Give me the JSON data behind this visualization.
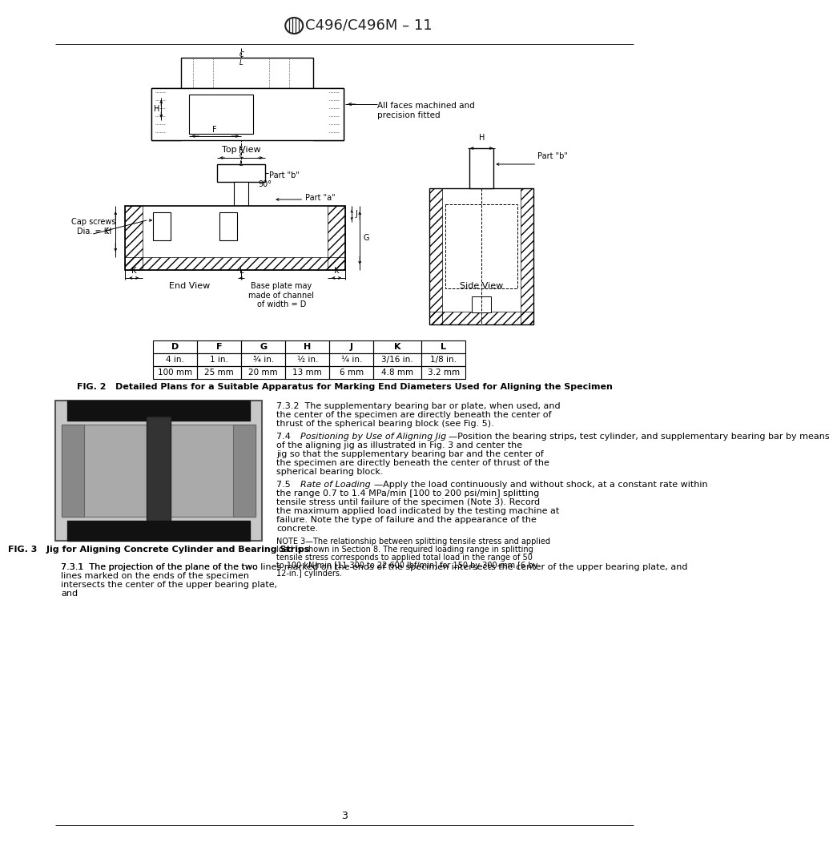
{
  "title": "C496/C496M – 11",
  "page_number": "3",
  "bg": "#ffffff",
  "fig2_caption": "FIG. 2   Detailed Plans for a Suitable Apparatus for Marking End Diameters Used for Aligning the Specimen",
  "fig3_caption": "FIG. 3   Jig for Aligning Concrete Cylinder and Bearing Strips",
  "table_headers": [
    "D",
    "F",
    "G",
    "H",
    "J",
    "K",
    "L"
  ],
  "table_row1": [
    "4 in.",
    "1 in.",
    "¾ in.",
    "½ in.",
    "¼ in.",
    "3/16 in.",
    "1/8 in."
  ],
  "table_row2": [
    "100 mm",
    "25 mm",
    "20 mm",
    "13 mm",
    "6 mm",
    "4.8 mm",
    "3.2 mm"
  ],
  "all_faces": "All faces machined and\nprecision fitted",
  "top_view": "Top View",
  "end_view": "End View",
  "side_view": "Side View",
  "base_plate_note": "Base plate may\nmade of channel\nof width = D",
  "sec_732_indent": "7.3.2",
  "sec_732_body": "The supplementary bearing bar or plate, when used, and the center of the specimen are directly beneath the center of thrust of the spherical bearing block (see Fig. 5).",
  "sec_74_num": "7.4",
  "sec_74_italic": "Positioning by Use of Aligning Jig",
  "sec_74_body": "—Position the bearing strips, test cylinder, and supplementary bearing bar by means of the aligning jig as illustrated in Fig. 3 and center the jig so that the supplementary bearing bar and the center of the specimen are directly beneath the center of thrust of the spherical bearing block.",
  "sec_75_num": "7.5",
  "sec_75_italic": "Rate of Loading",
  "sec_75_body": "—Apply the load continuously and without shock, at a constant rate within the range 0.7 to 1.4 MPa/min [100 to 200 psi/min] splitting tensile stress until failure of the specimen (Note 3). Record the maximum applied load indicated by the testing machine at failure. Note the type of failure and the appearance of the concrete.",
  "note3_label": "NOTE 3",
  "note3_body": "—The relationship between splitting tensile stress and applied load is shown in Section 8. The required loading range in splitting tensile stress corresponds to applied total load in the range of 50 to 100 kN/min [11 300 to 22 600 lbf/min] for 150 by 300-mm [6 by 12-in.] cylinders.",
  "sec_731": "7.3.1  The projection of the plane of the two lines marked on the ends of the specimen intersects the center of the upper bearing plate, and"
}
